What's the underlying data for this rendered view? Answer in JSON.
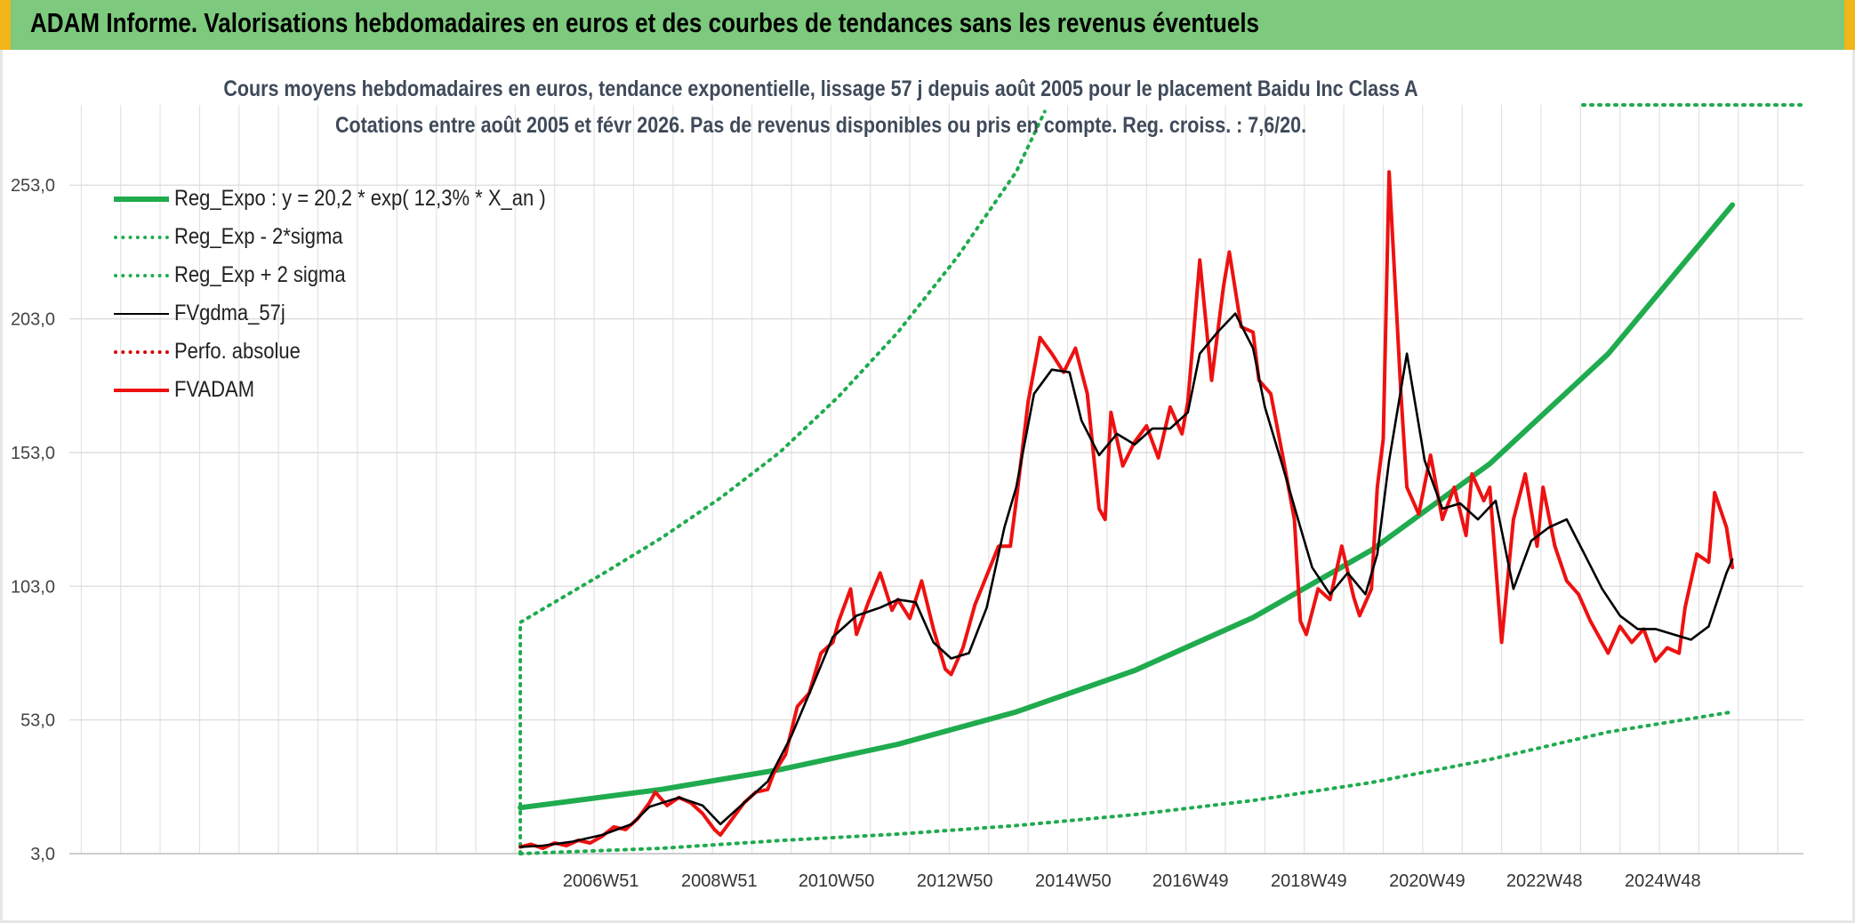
{
  "header": {
    "title": "ADAM Informe. Valorisations hebdomadaires en euros et des courbes de tendances sans les revenus éventuels"
  },
  "colors": {
    "header_bg": "#7dc97d",
    "header_corner": "#f2b51a",
    "reg_expo": "#1fab4e",
    "sigma": "#1fab4e",
    "fvgdma": "#000000",
    "perfo": "#d40000",
    "fvadam": "#ee1111"
  },
  "chart_data": {
    "type": "line",
    "title": "Cours moyens hebdomadaires en euros, tendance exponentielle, lissage 57 j depuis août 2005 pour le placement Baidu Inc Class A",
    "subtitle": "Cotations entre août 2005 et févr 2026. Pas de revenus disponibles ou pris en compte. Reg. croiss. : 7,6/20.",
    "xlabel": "",
    "ylabel": "",
    "x_ticks": [
      "2006W51",
      "2008W51",
      "2010W50",
      "2012W50",
      "2014W50",
      "2016W49",
      "2018W49",
      "2020W49",
      "2022W48",
      "2024W48"
    ],
    "x_range": [
      1998.0,
      2027.3
    ],
    "y_ticks": [
      "3,0",
      "53,0",
      "103,0",
      "153,0",
      "203,0",
      "253,0"
    ],
    "ylim": [
      3,
      283
    ],
    "grid": true,
    "legend_position": "top-left",
    "series": [
      {
        "name": "Reg_Expo : y = 20,2 * exp( 12,3% *  X_an )",
        "style": "solid-thick",
        "color": "#1fab4e",
        "x": [
          2005.62,
          2008.0,
          2010.0,
          2012.0,
          2014.0,
          2016.0,
          2018.0,
          2020.0,
          2022.0,
          2024.0,
          2026.1
        ],
        "y": [
          20.2,
          27.0,
          34.4,
          43.9,
          56.0,
          71.5,
          91.3,
          116.5,
          148.8,
          189.9,
          245.6
        ]
      },
      {
        "name": "Reg_Exp - 2*sigma",
        "style": "dotted",
        "color": "#1fab4e",
        "x": [
          2005.62,
          2008.0,
          2010.0,
          2012.0,
          2014.0,
          2016.0,
          2018.0,
          2020.0,
          2022.0,
          2024.0,
          2026.1
        ],
        "y": [
          3.0,
          5.0,
          7.9,
          10.3,
          13.5,
          17.6,
          22.9,
          29.6,
          38.2,
          48.5,
          56.0
        ]
      },
      {
        "name": "Reg_Exp + 2 sigma",
        "style": "dotted",
        "color": "#1fab4e",
        "x": [
          2005.62,
          2005.62,
          2007.0,
          2008.0,
          2009.0,
          2010.0,
          2011.0,
          2012.0,
          2013.0,
          2014.0,
          2014.48
        ],
        "y": [
          3.0,
          89.5,
          107.5,
          121.0,
          136.0,
          153.0,
          174.0,
          198.0,
          226.0,
          258.0,
          280.5
        ]
      },
      {
        "name": "FVgdma_57j",
        "style": "solid",
        "color": "#000000",
        "x": [
          2005.62,
          2006.0,
          2006.5,
          2007.0,
          2007.5,
          2007.8,
          2008.3,
          2008.7,
          2009.0,
          2009.4,
          2009.8,
          2010.2,
          2010.6,
          2010.9,
          2011.3,
          2011.7,
          2012.0,
          2012.3,
          2012.6,
          2012.9,
          2013.2,
          2013.5,
          2013.8,
          2014.0,
          2014.3,
          2014.6,
          2014.9,
          2015.1,
          2015.4,
          2015.7,
          2016.0,
          2016.3,
          2016.6,
          2016.9,
          2017.1,
          2017.4,
          2017.7,
          2018.0,
          2018.2,
          2018.5,
          2018.8,
          2019.0,
          2019.3,
          2019.6,
          2019.9,
          2020.1,
          2020.3,
          2020.6,
          2020.9,
          2021.2,
          2021.5,
          2021.8,
          2022.1,
          2022.4,
          2022.7,
          2023.0,
          2023.3,
          2023.6,
          2023.9,
          2024.2,
          2024.5,
          2024.8,
          2025.1,
          2025.4,
          2025.7,
          2026.0,
          2026.1
        ],
        "y": [
          5.5,
          6.0,
          7.5,
          10.0,
          14.0,
          20.5,
          24.0,
          21.0,
          14.0,
          22.0,
          30.0,
          47.0,
          68.0,
          84.0,
          92.0,
          95.0,
          98.0,
          97.0,
          82.0,
          76.0,
          78.0,
          95.0,
          125.0,
          140.0,
          175.0,
          184.0,
          183.0,
          165.0,
          152.0,
          160.0,
          156.0,
          162.0,
          162.0,
          168.0,
          190.0,
          198.0,
          205.0,
          192.0,
          170.0,
          148.0,
          125.0,
          110.0,
          100.0,
          108.0,
          100.0,
          115.0,
          150.0,
          190.0,
          150.0,
          132.0,
          134.0,
          128.0,
          135.0,
          102.0,
          120.0,
          125.0,
          128.0,
          115.0,
          102.0,
          92.0,
          87.0,
          87.0,
          85.0,
          83.0,
          88.0,
          108.0,
          113.0
        ]
      },
      {
        "name": "Perfo. absolue",
        "style": "dotted",
        "color": "#d40000",
        "x": [],
        "y": []
      },
      {
        "name": "FVADAM",
        "style": "solid-thick",
        "color": "#ee1111",
        "x": [
          2005.62,
          2005.8,
          2006.0,
          2006.2,
          2006.4,
          2006.6,
          2006.8,
          2007.0,
          2007.2,
          2007.4,
          2007.6,
          2007.8,
          2007.9,
          2008.1,
          2008.3,
          2008.5,
          2008.7,
          2008.9,
          2009.0,
          2009.2,
          2009.4,
          2009.6,
          2009.8,
          2009.9,
          2010.1,
          2010.3,
          2010.5,
          2010.7,
          2010.9,
          2011.0,
          2011.2,
          2011.3,
          2011.5,
          2011.7,
          2011.9,
          2012.0,
          2012.2,
          2012.4,
          2012.6,
          2012.8,
          2012.9,
          2013.1,
          2013.3,
          2013.5,
          2013.7,
          2013.9,
          2014.0,
          2014.2,
          2014.4,
          2014.6,
          2014.8,
          2015.0,
          2015.2,
          2015.4,
          2015.5,
          2015.6,
          2015.8,
          2016.0,
          2016.2,
          2016.4,
          2016.6,
          2016.8,
          2016.9,
          2017.1,
          2017.3,
          2017.5,
          2017.6,
          2017.8,
          2018.0,
          2018.1,
          2018.3,
          2018.5,
          2018.7,
          2018.8,
          2018.9,
          2019.1,
          2019.3,
          2019.5,
          2019.7,
          2019.8,
          2020.0,
          2020.1,
          2020.2,
          2020.3,
          2020.5,
          2020.6,
          2020.8,
          2021.0,
          2021.2,
          2021.4,
          2021.6,
          2021.7,
          2021.9,
          2022.0,
          2022.2,
          2022.4,
          2022.6,
          2022.8,
          2022.9,
          2023.1,
          2023.3,
          2023.5,
          2023.7,
          2023.9,
          2024.0,
          2024.2,
          2024.4,
          2024.6,
          2024.8,
          2025.0,
          2025.2,
          2025.3,
          2025.5,
          2025.7,
          2025.8,
          2026.0,
          2026.1
        ],
        "y": [
          5.5,
          6.5,
          5.0,
          7.0,
          6.0,
          8.0,
          7.0,
          9.5,
          13.0,
          12.0,
          16.0,
          22.0,
          26.0,
          21.0,
          24.0,
          22.0,
          18.0,
          12.0,
          10.0,
          16.0,
          22.0,
          26.0,
          27.0,
          33.0,
          40.0,
          58.0,
          63.0,
          78.0,
          82.0,
          90.0,
          102.0,
          85.0,
          97.0,
          108.0,
          94.0,
          98.0,
          91.0,
          105.0,
          87.0,
          72.0,
          70.0,
          80.0,
          96.0,
          107.0,
          118.0,
          118.0,
          135.0,
          172.0,
          196.0,
          190.0,
          183.0,
          192.0,
          175.0,
          132.0,
          128.0,
          168.0,
          148.0,
          157.0,
          163.0,
          151.0,
          170.0,
          160.0,
          172.0,
          225.0,
          180.0,
          215.0,
          228.0,
          200.0,
          198.0,
          180.0,
          175.0,
          152.0,
          128.0,
          90.0,
          85.0,
          102.0,
          98.0,
          118.0,
          99.0,
          92.0,
          102.0,
          140.0,
          158.0,
          258.0,
          175.0,
          140.0,
          130.0,
          152.0,
          128.0,
          140.0,
          122.0,
          145.0,
          135.0,
          140.0,
          82.0,
          128.0,
          145.0,
          118.0,
          140.0,
          118.0,
          105.0,
          100.0,
          90.0,
          82.0,
          78.0,
          88.0,
          82.0,
          87.0,
          75.0,
          80.0,
          78.0,
          95.0,
          115.0,
          112.0,
          138.0,
          125.0,
          110.0
        ]
      }
    ]
  }
}
